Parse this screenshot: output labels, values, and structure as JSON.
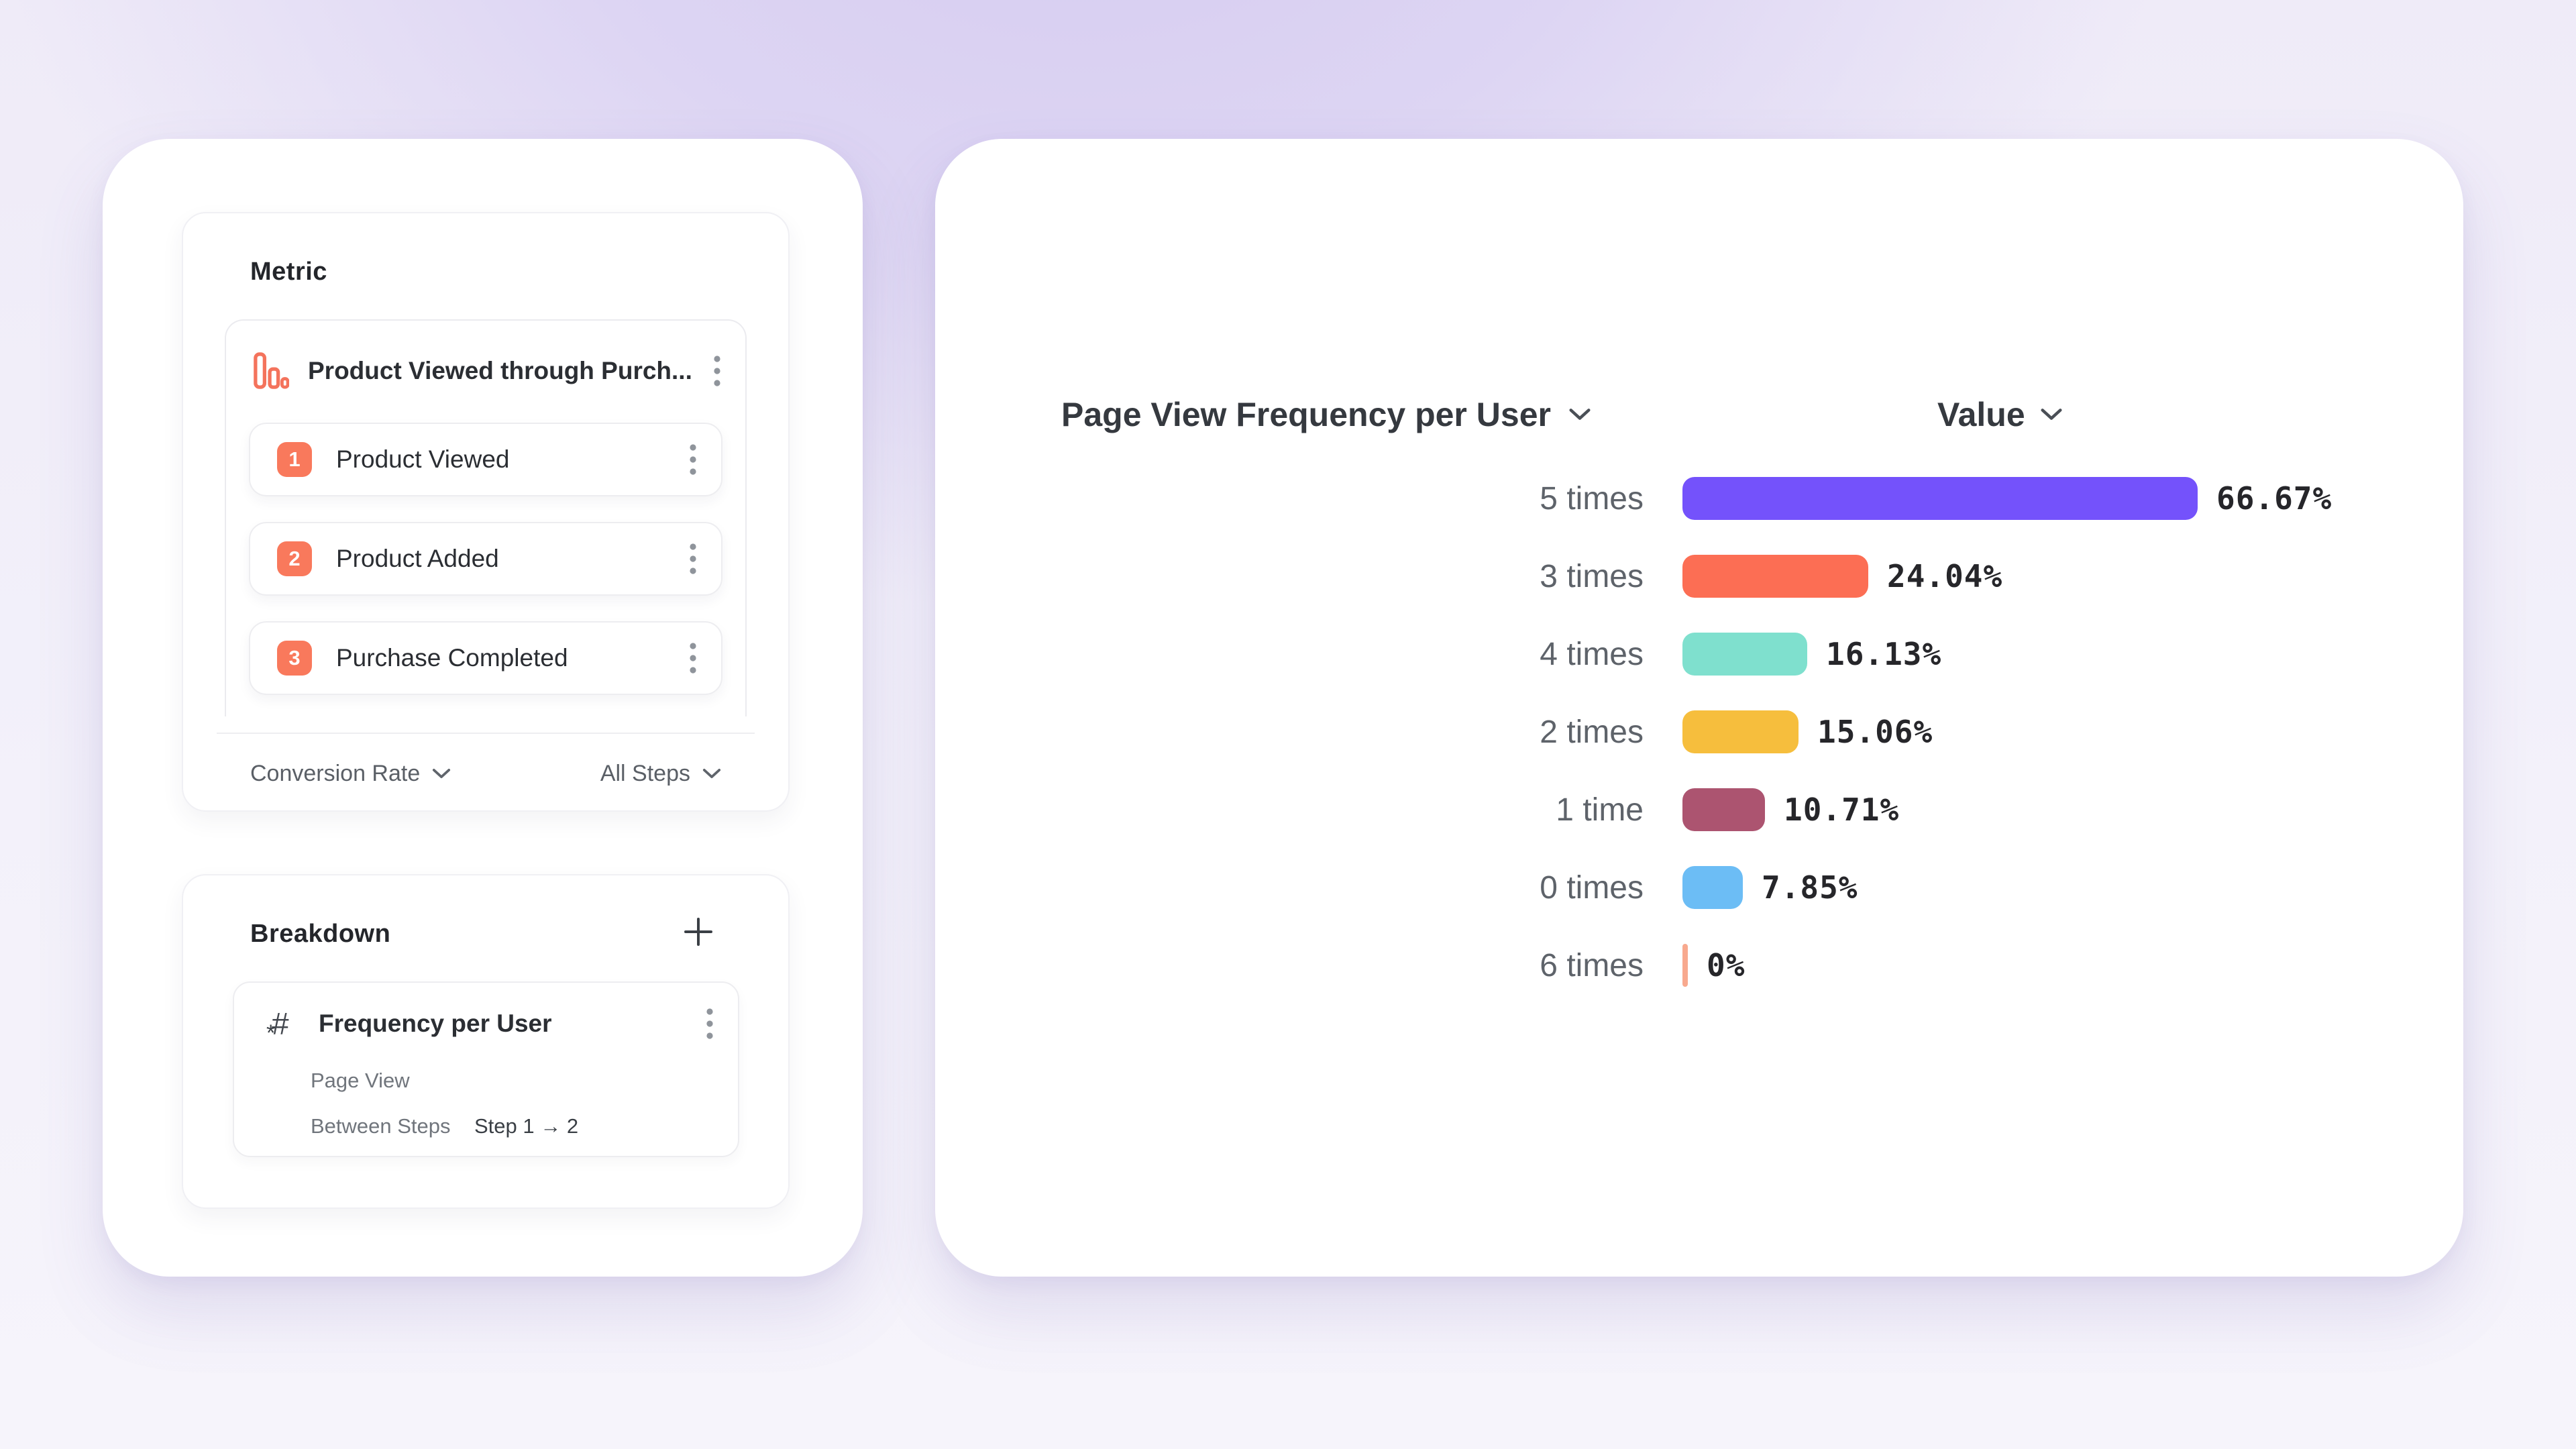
{
  "left_panel": {
    "metric_card": {
      "title": "Metric",
      "funnel": {
        "name": "Product Viewed through Purch...",
        "steps": [
          {
            "number": "1",
            "label": "Product Viewed"
          },
          {
            "number": "2",
            "label": "Product Added"
          },
          {
            "number": "3",
            "label": "Purchase Completed"
          }
        ]
      },
      "conversion_dropdown": "Conversion Rate",
      "steps_dropdown": "All Steps"
    },
    "breakdown_card": {
      "title": "Breakdown",
      "item": {
        "title": "Frequency per User",
        "event": "Page View",
        "between_steps_label": "Between Steps",
        "step_range": "Step 1 → 2"
      }
    }
  },
  "chart_panel": {
    "series_dropdown": "Page View Frequency per User",
    "value_dropdown": "Value"
  },
  "chart_data": {
    "type": "bar",
    "orientation": "horizontal",
    "title": "Page View Frequency per User",
    "value_column_label": "Value",
    "categories": [
      "5 times",
      "3 times",
      "4 times",
      "2 times",
      "1 time",
      "0 times",
      "6 times"
    ],
    "values": [
      66.67,
      24.04,
      16.13,
      15.06,
      10.71,
      7.85,
      0
    ],
    "value_labels": [
      "66.67%",
      "24.04%",
      "16.13%",
      "15.06%",
      "10.71%",
      "7.85%",
      "0%"
    ],
    "bar_colors": [
      "#7452FB",
      "#FC6E54",
      "#7FE0CE",
      "#F6BE3D",
      "#AC5470",
      "#6CBDF5",
      "#F8A98E"
    ],
    "xlim": [
      0,
      100
    ],
    "grid": false,
    "legend": false
  },
  "colors": {
    "accent_coral": "#F9795C",
    "icon_gray": "#8F949B",
    "text_dark": "#2B2E33",
    "text_gray": "#5E636A"
  }
}
